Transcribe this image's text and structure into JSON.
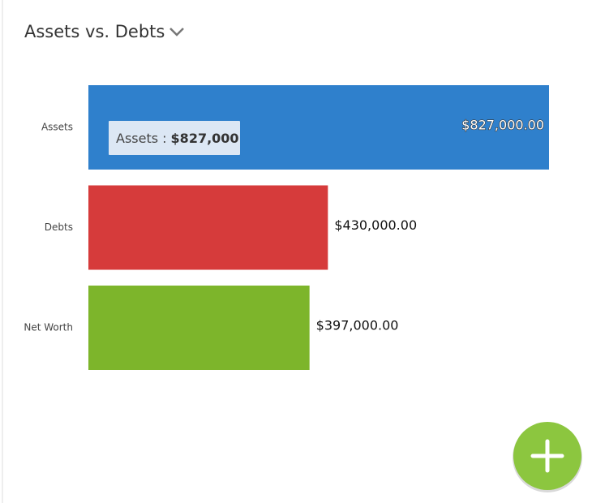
{
  "chart_data": {
    "type": "bar",
    "orientation": "horizontal",
    "title": "Assets vs. Debts",
    "categories": [
      "Assets",
      "Debts",
      "Net Worth"
    ],
    "values": [
      827000,
      430000,
      397000
    ],
    "value_labels": [
      "$827,000.00",
      "$430,000.00",
      "$397,000.00"
    ],
    "colors": [
      "#2f80cc",
      "#d63b3b",
      "#7db52b"
    ],
    "tooltip": {
      "label": "Assets :",
      "value_label": "$827,000"
    }
  }
}
